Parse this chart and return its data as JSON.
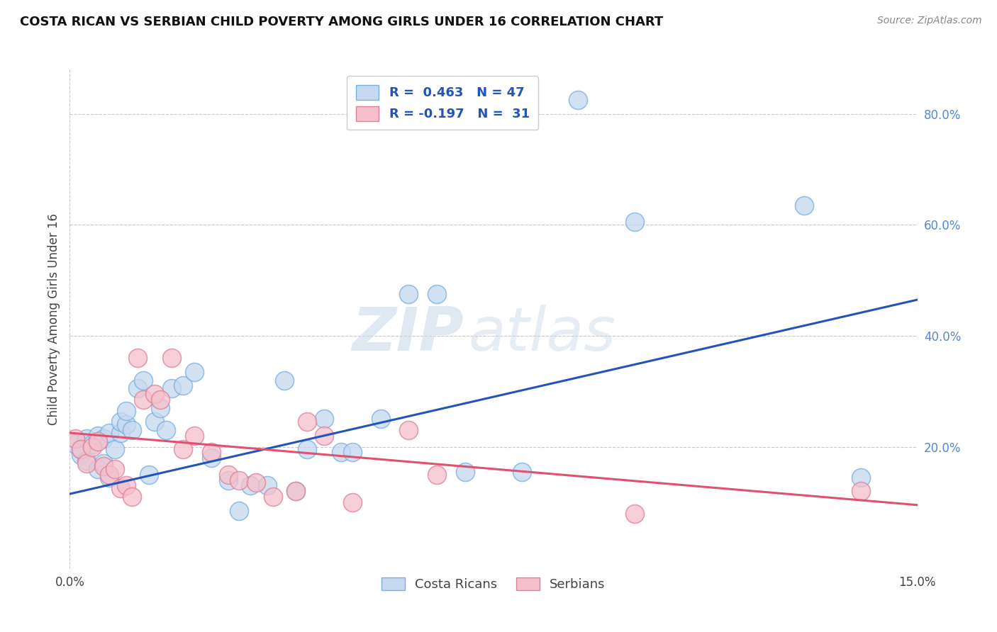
{
  "title": "COSTA RICAN VS SERBIAN CHILD POVERTY AMONG GIRLS UNDER 16 CORRELATION CHART",
  "source": "Source: ZipAtlas.com",
  "ylabel": "Child Poverty Among Girls Under 16",
  "xlim": [
    0.0,
    0.15
  ],
  "ylim": [
    -0.02,
    0.88
  ],
  "legend_entries": [
    {
      "label": "R =  0.463   N = 47",
      "facecolor": "#c5d9f0",
      "edgecolor": "#7ab0e0"
    },
    {
      "label": "R = -0.197   N =  31",
      "facecolor": "#f5c0cc",
      "edgecolor": "#e08098"
    }
  ],
  "costa_rican_x": [
    0.001,
    0.002,
    0.002,
    0.003,
    0.003,
    0.004,
    0.005,
    0.005,
    0.006,
    0.006,
    0.007,
    0.007,
    0.008,
    0.009,
    0.009,
    0.01,
    0.01,
    0.011,
    0.012,
    0.013,
    0.014,
    0.015,
    0.016,
    0.017,
    0.018,
    0.02,
    0.022,
    0.025,
    0.028,
    0.03,
    0.032,
    0.035,
    0.038,
    0.04,
    0.042,
    0.045,
    0.048,
    0.05,
    0.055,
    0.06,
    0.065,
    0.07,
    0.08,
    0.09,
    0.1,
    0.13,
    0.14
  ],
  "costa_rican_y": [
    0.205,
    0.185,
    0.195,
    0.175,
    0.215,
    0.205,
    0.16,
    0.22,
    0.17,
    0.215,
    0.145,
    0.225,
    0.195,
    0.225,
    0.245,
    0.24,
    0.265,
    0.23,
    0.305,
    0.32,
    0.15,
    0.245,
    0.27,
    0.23,
    0.305,
    0.31,
    0.335,
    0.18,
    0.14,
    0.085,
    0.13,
    0.13,
    0.32,
    0.12,
    0.195,
    0.25,
    0.19,
    0.19,
    0.25,
    0.475,
    0.475,
    0.155,
    0.155,
    0.825,
    0.605,
    0.635,
    0.145
  ],
  "serbian_x": [
    0.001,
    0.002,
    0.003,
    0.004,
    0.005,
    0.006,
    0.007,
    0.008,
    0.009,
    0.01,
    0.011,
    0.012,
    0.013,
    0.015,
    0.016,
    0.018,
    0.02,
    0.022,
    0.025,
    0.028,
    0.03,
    0.033,
    0.036,
    0.04,
    0.042,
    0.045,
    0.05,
    0.06,
    0.065,
    0.1,
    0.14
  ],
  "serbian_y": [
    0.215,
    0.195,
    0.17,
    0.2,
    0.21,
    0.165,
    0.15,
    0.16,
    0.125,
    0.13,
    0.11,
    0.36,
    0.285,
    0.295,
    0.285,
    0.36,
    0.195,
    0.22,
    0.19,
    0.15,
    0.14,
    0.135,
    0.11,
    0.12,
    0.245,
    0.22,
    0.1,
    0.23,
    0.15,
    0.08,
    0.12
  ],
  "cr_trend_x": [
    0.0,
    0.15
  ],
  "cr_trend_y": [
    0.115,
    0.465
  ],
  "sr_trend_x": [
    0.0,
    0.15
  ],
  "sr_trend_y": [
    0.225,
    0.095
  ],
  "dot_size": 350,
  "cr_facecolor": "#c5d9f0",
  "cr_edgecolor": "#7ab0e0",
  "sr_facecolor": "#f5c0cc",
  "sr_edgecolor": "#e08098",
  "cr_line_color": "#2255bb",
  "sr_line_color": "#e05070",
  "watermark_top": "ZIP",
  "watermark_bottom": "atlas",
  "bg_color": "#ffffff",
  "grid_color": "#c8c8c8",
  "title_fontsize": 13,
  "source_fontsize": 10,
  "ylabel_fontsize": 12,
  "tick_fontsize": 12,
  "legend_fontsize": 13
}
